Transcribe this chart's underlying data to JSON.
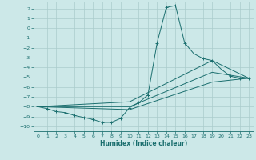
{
  "bg_color": "#cce8e8",
  "grid_color": "#aacccc",
  "line_color": "#1a6e6e",
  "xlabel": "Humidex (Indice chaleur)",
  "ylim": [
    -10.5,
    2.7
  ],
  "xlim": [
    -0.5,
    23.5
  ],
  "yticks": [
    2,
    1,
    0,
    -1,
    -2,
    -3,
    -4,
    -5,
    -6,
    -7,
    -8,
    -9,
    -10
  ],
  "xticks": [
    0,
    1,
    2,
    3,
    4,
    5,
    6,
    7,
    8,
    9,
    10,
    11,
    12,
    13,
    14,
    15,
    16,
    17,
    18,
    19,
    20,
    21,
    22,
    23
  ],
  "series": [
    [
      0,
      -8.0
    ],
    [
      1,
      -8.2
    ],
    [
      2,
      -8.5
    ],
    [
      3,
      -8.6
    ],
    [
      4,
      -8.9
    ],
    [
      5,
      -9.1
    ],
    [
      6,
      -9.3
    ],
    [
      7,
      -9.6
    ],
    [
      8,
      -9.6
    ],
    [
      9,
      -9.2
    ],
    [
      10,
      -8.1
    ],
    [
      11,
      -7.6
    ],
    [
      12,
      -6.8
    ],
    [
      13,
      -1.5
    ],
    [
      14,
      2.1
    ],
    [
      15,
      2.3
    ],
    [
      16,
      -1.5
    ],
    [
      17,
      -2.6
    ],
    [
      18,
      -3.1
    ],
    [
      19,
      -3.3
    ],
    [
      20,
      -4.2
    ],
    [
      21,
      -4.9
    ],
    [
      22,
      -5.1
    ],
    [
      23,
      -5.1
    ]
  ],
  "line2": [
    [
      0,
      -8.0
    ],
    [
      10,
      -7.5
    ],
    [
      19,
      -3.3
    ],
    [
      23,
      -5.1
    ]
  ],
  "line3": [
    [
      0,
      -8.0
    ],
    [
      10,
      -8.0
    ],
    [
      19,
      -4.5
    ],
    [
      23,
      -5.1
    ]
  ],
  "line4": [
    [
      0,
      -8.0
    ],
    [
      10,
      -8.3
    ],
    [
      19,
      -5.5
    ],
    [
      23,
      -5.1
    ]
  ]
}
